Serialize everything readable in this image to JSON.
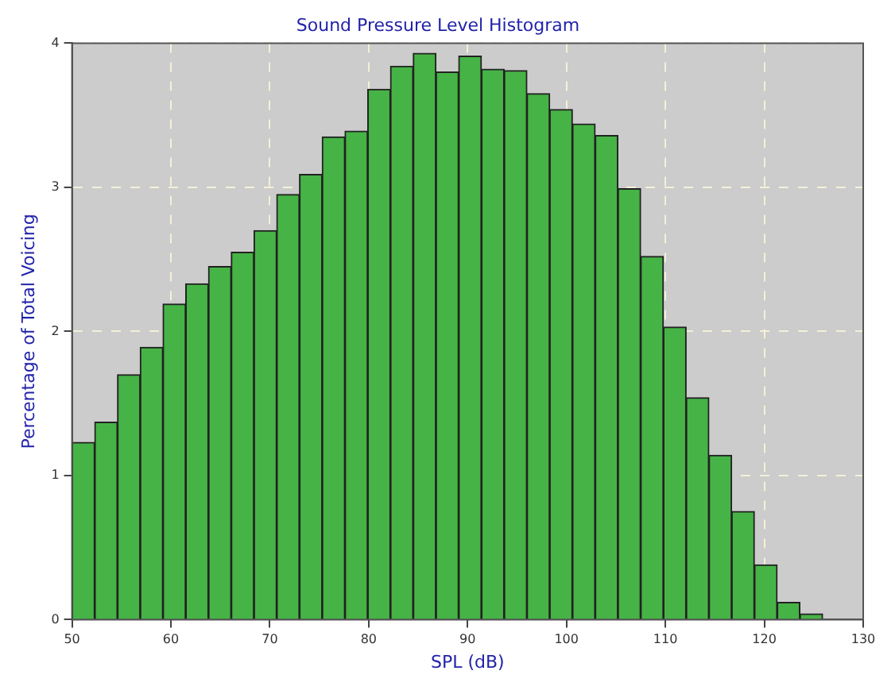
{
  "chart_data": {
    "type": "histogram",
    "title": "Sound Pressure Level Histogram",
    "xlabel": "SPL (dB)",
    "ylabel": "Percentage of Total Voicing",
    "bins": [
      50,
      52.3,
      54.6,
      56.9,
      59.2,
      61.5,
      63.8,
      66.1,
      68.4,
      70.7,
      73,
      75.3,
      77.6,
      79.9,
      82.2,
      84.5,
      86.8,
      89.1,
      91.4,
      93.7,
      96,
      98.3,
      100.6,
      102.9,
      105.2,
      107.5,
      109.8,
      112.1,
      114.4,
      116.7,
      119,
      121.3,
      123.6,
      125.9
    ],
    "values": [
      1.23,
      1.37,
      1.7,
      1.89,
      2.19,
      2.33,
      2.45,
      2.55,
      2.7,
      2.95,
      3.09,
      3.35,
      3.39,
      3.68,
      3.84,
      3.93,
      3.8,
      3.91,
      3.82,
      3.81,
      3.65,
      3.54,
      3.44,
      3.36,
      2.99,
      2.52,
      2.03,
      1.54,
      1.14,
      0.75,
      0.38,
      0.12,
      0.04
    ],
    "color": "#46b346",
    "xlim": [
      50,
      130
    ],
    "xticks": [
      50,
      60,
      70,
      80,
      90,
      100,
      110,
      120,
      130
    ],
    "ylim": [
      0,
      4
    ],
    "yticks": [
      0,
      1,
      2,
      3,
      4
    ],
    "grid": true,
    "legend": false
  }
}
